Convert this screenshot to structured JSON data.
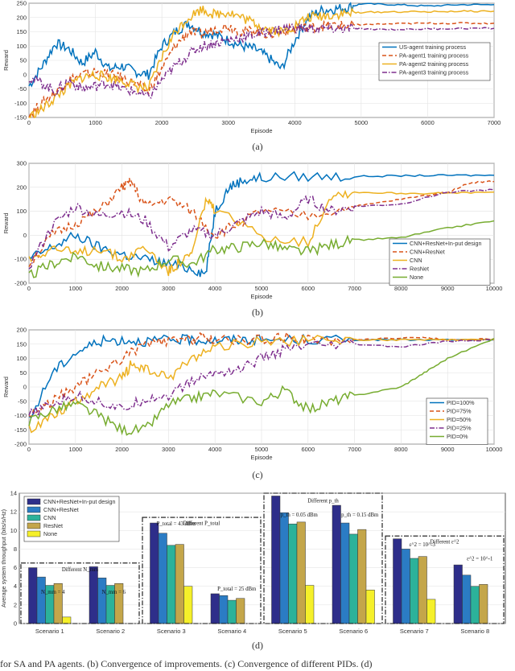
{
  "colors": {
    "blue": "#0072BD",
    "red": "#D95319",
    "yellow": "#EDB120",
    "purple": "#7E2F8E",
    "green": "#77AC30",
    "bar_navy": "#2E2E8A",
    "bar_blue": "#2B7CC4",
    "bar_teal": "#2CB29A",
    "bar_khaki": "#C4A64A",
    "bar_yellow": "#F5F02A"
  },
  "chart_data": [
    {
      "panel": "(a)",
      "type": "line",
      "xlabel": "Episode",
      "ylabel": "Reward",
      "xlim": [
        0,
        7000
      ],
      "ylim": [
        -150,
        250
      ],
      "xticks": [
        "0",
        "1000",
        "2000",
        "3000",
        "4000",
        "5000",
        "6000",
        "7000"
      ],
      "yticks": [
        "-150",
        "-100",
        "-50",
        "0",
        "50",
        "100",
        "150",
        "200",
        "250"
      ],
      "legend_position": "right",
      "series": [
        {
          "name": "US-agent training process",
          "style": "solid",
          "x": [
            0,
            200,
            400,
            600,
            800,
            1000,
            1200,
            1400,
            1600,
            1800,
            2000,
            2200,
            2400,
            2600,
            2800,
            3000,
            3200,
            3400,
            3600,
            3800,
            4000,
            4200,
            4400,
            4600,
            4800,
            5000,
            5500,
            6000,
            6500,
            7000
          ],
          "y": [
            -40,
            30,
            110,
            90,
            40,
            80,
            20,
            30,
            10,
            0,
            100,
            150,
            180,
            150,
            140,
            120,
            100,
            90,
            60,
            20,
            120,
            200,
            225,
            230,
            235,
            248,
            245,
            240,
            245,
            245
          ]
        },
        {
          "name": "PA-agent1 training process",
          "style": "dashed",
          "x": [
            0,
            200,
            400,
            600,
            800,
            1000,
            1200,
            1400,
            1600,
            1800,
            2000,
            2200,
            2400,
            2600,
            2800,
            3000,
            3200,
            3400,
            3600,
            3800,
            4000,
            4200,
            4400,
            4600,
            4800,
            5000,
            5500,
            6000,
            6500,
            7000
          ],
          "y": [
            -140,
            -100,
            -60,
            -20,
            0,
            10,
            0,
            -10,
            -30,
            -60,
            20,
            100,
            150,
            140,
            160,
            170,
            150,
            155,
            140,
            150,
            160,
            165,
            170,
            172,
            172,
            175,
            178,
            180,
            180,
            180
          ]
        },
        {
          "name": "PA-agent2 training process",
          "style": "solid",
          "x": [
            0,
            200,
            400,
            600,
            800,
            1000,
            1200,
            1400,
            1600,
            1800,
            2000,
            2200,
            2400,
            2600,
            2800,
            3000,
            3200,
            3400,
            3600,
            3800,
            4000,
            4200,
            4400,
            4600,
            4800,
            5000,
            5500,
            6000,
            6500,
            7000
          ],
          "y": [
            -150,
            -120,
            -80,
            -40,
            -10,
            0,
            -10,
            -20,
            -40,
            -50,
            60,
            150,
            200,
            230,
            210,
            220,
            200,
            180,
            160,
            150,
            170,
            200,
            205,
            210,
            215,
            218,
            220,
            220,
            222,
            222
          ]
        },
        {
          "name": "PA-agent3 training process",
          "style": "dashdot",
          "x": [
            0,
            200,
            400,
            600,
            800,
            1000,
            1200,
            1400,
            1600,
            1800,
            2000,
            2200,
            2400,
            2600,
            2800,
            3000,
            3200,
            3400,
            3600,
            3800,
            4000,
            4200,
            4400,
            4600,
            4800,
            5000,
            5500,
            6000,
            6500,
            7000
          ],
          "y": [
            -10,
            -30,
            -60,
            -20,
            -50,
            -40,
            -30,
            -50,
            -60,
            -80,
            -20,
            30,
            70,
            100,
            110,
            120,
            130,
            140,
            150,
            160,
            165,
            160,
            162,
            160,
            160,
            160,
            158,
            160,
            162,
            162
          ]
        }
      ]
    },
    {
      "panel": "(b)",
      "type": "line",
      "xlabel": "Episode",
      "ylabel": "Reward",
      "xlim": [
        0,
        10000
      ],
      "ylim": [
        -200,
        300
      ],
      "xticks": [
        "0",
        "1000",
        "2000",
        "3000",
        "4000",
        "5000",
        "6000",
        "7000",
        "8000",
        "9000",
        "10000"
      ],
      "yticks": [
        "-200",
        "-100",
        "0",
        "100",
        "200",
        "300"
      ],
      "legend_position": "right",
      "series": [
        {
          "name": "CNN+ResNet+In-put design",
          "style": "solid",
          "x": [
            0,
            500,
            1000,
            1500,
            2000,
            2500,
            3000,
            3500,
            3800,
            4000,
            4300,
            4600,
            5000,
            6000,
            7000,
            8000,
            9000,
            10000
          ],
          "y": [
            -100,
            -50,
            0,
            -50,
            -80,
            -100,
            -120,
            -140,
            -160,
            100,
            200,
            230,
            240,
            245,
            245,
            248,
            250,
            250
          ]
        },
        {
          "name": "CNN+ResNet",
          "style": "dashed",
          "x": [
            0,
            500,
            1000,
            1500,
            2000,
            2200,
            2500,
            3000,
            3500,
            4000,
            4500,
            5000,
            6000,
            7000,
            8000,
            9000,
            9500,
            10000
          ],
          "y": [
            -120,
            0,
            50,
            100,
            200,
            220,
            120,
            150,
            100,
            0,
            50,
            100,
            80,
            120,
            150,
            180,
            220,
            225
          ]
        },
        {
          "name": "CNN",
          "style": "solid",
          "x": [
            0,
            500,
            1000,
            1500,
            2000,
            2500,
            3000,
            3200,
            3500,
            3800,
            4000,
            5000,
            6000,
            6500,
            7000,
            8000,
            9000,
            10000
          ],
          "y": [
            -100,
            -50,
            -80,
            -50,
            -100,
            -50,
            -150,
            -120,
            -80,
            150,
            100,
            0,
            -30,
            170,
            180,
            175,
            175,
            180
          ]
        },
        {
          "name": "ResNet",
          "style": "dashdot",
          "x": [
            0,
            500,
            1000,
            1500,
            2000,
            2500,
            3000,
            3500,
            4000,
            4500,
            5000,
            5500,
            6000,
            6500,
            7000,
            8000,
            9000,
            10000
          ],
          "y": [
            -130,
            40,
            120,
            80,
            100,
            60,
            -50,
            20,
            0,
            50,
            100,
            70,
            150,
            100,
            120,
            130,
            180,
            190
          ]
        },
        {
          "name": "None",
          "style": "solid",
          "x": [
            0,
            500,
            1000,
            1500,
            2000,
            2500,
            3000,
            3500,
            4000,
            4500,
            5000,
            5500,
            6000,
            6500,
            7000,
            8000,
            9000,
            10000
          ],
          "y": [
            -170,
            -120,
            -80,
            -130,
            -140,
            -150,
            -100,
            -120,
            -60,
            -50,
            -30,
            -60,
            -70,
            -40,
            -20,
            -10,
            30,
            60
          ]
        }
      ]
    },
    {
      "panel": "(c)",
      "type": "line",
      "xlabel": "Episode",
      "ylabel": "Reward",
      "xlim": [
        0,
        10000
      ],
      "ylim": [
        -200,
        200
      ],
      "xticks": [
        "0",
        "1000",
        "2000",
        "3000",
        "4000",
        "5000",
        "6000",
        "7000",
        "8000",
        "9000",
        "10000"
      ],
      "yticks": [
        "-200",
        "-150",
        "-100",
        "-50",
        "0",
        "50",
        "100",
        "150",
        "200"
      ],
      "legend_position": "right",
      "series": [
        {
          "name": "PID=100%",
          "style": "solid",
          "x": [
            0,
            500,
            1000,
            1500,
            2000,
            2500,
            3000,
            3500,
            4000,
            4500,
            5000,
            6000,
            7000,
            8000,
            9000,
            10000
          ],
          "y": [
            -120,
            50,
            120,
            160,
            165,
            160,
            165,
            165,
            165,
            165,
            165,
            165,
            165,
            165,
            165,
            165
          ]
        },
        {
          "name": "PID=75%",
          "style": "dashed",
          "x": [
            0,
            500,
            1000,
            1500,
            2000,
            2500,
            3000,
            3500,
            3700,
            4000,
            5000,
            5600,
            6000,
            7000,
            8400,
            9000,
            10000
          ],
          "y": [
            -100,
            -50,
            0,
            50,
            100,
            150,
            160,
            165,
            175,
            165,
            165,
            175,
            165,
            165,
            175,
            165,
            168
          ]
        },
        {
          "name": "PID=50%",
          "style": "solid",
          "x": [
            0,
            500,
            1000,
            1500,
            2000,
            2200,
            2500,
            3000,
            3500,
            4000,
            5000,
            6000,
            7000,
            8000,
            9000,
            10000
          ],
          "y": [
            -150,
            -100,
            -50,
            0,
            30,
            80,
            60,
            30,
            100,
            140,
            160,
            162,
            165,
            165,
            165,
            165
          ]
        },
        {
          "name": "PID=25%",
          "style": "dashdot",
          "x": [
            0,
            500,
            1000,
            1500,
            2000,
            2500,
            3000,
            3500,
            4000,
            4500,
            5000,
            5500,
            6000,
            7000,
            8000,
            9000,
            10000
          ],
          "y": [
            -100,
            -60,
            -30,
            -50,
            -80,
            -40,
            -30,
            20,
            50,
            60,
            100,
            130,
            140,
            150,
            140,
            160,
            165
          ]
        },
        {
          "name": "PID=0%",
          "style": "solid",
          "x": [
            0,
            500,
            1000,
            1500,
            2000,
            2500,
            3000,
            3500,
            4000,
            5000,
            5500,
            6000,
            6500,
            7000,
            8000,
            8500,
            9000,
            10000
          ],
          "y": [
            -120,
            -80,
            -60,
            -100,
            -150,
            -150,
            -60,
            -40,
            -20,
            -50,
            -10,
            -80,
            -50,
            -30,
            0,
            50,
            100,
            170
          ]
        }
      ]
    },
    {
      "panel": "(d)",
      "type": "bar",
      "ylabel": "Average system throughput (bits/s/Hz)",
      "ylim": [
        0,
        14
      ],
      "yticks": [
        "0",
        "2",
        "4",
        "6",
        "8",
        "10",
        "12",
        "14"
      ],
      "categories": [
        "Scenario 1",
        "Scenario 2",
        "Scenario 3",
        "Scenario 4",
        "Scenario 5",
        "Scenario 6",
        "Scenario 7",
        "Scenario 8"
      ],
      "legend_position": "top-left",
      "series": [
        {
          "name": "CNN+ResNet+In-put design",
          "values": [
            6.0,
            6.1,
            10.8,
            3.2,
            13.7,
            12.7,
            9.1,
            6.3
          ]
        },
        {
          "name": "CNN+ResNet",
          "values": [
            5.0,
            4.9,
            9.7,
            3.0,
            11.9,
            10.8,
            8.0,
            5.2
          ]
        },
        {
          "name": "CNN",
          "values": [
            4.1,
            4.1,
            8.4,
            2.5,
            10.7,
            9.6,
            7.0,
            4.0
          ]
        },
        {
          "name": "ResNet",
          "values": [
            4.3,
            4.3,
            8.5,
            2.7,
            10.9,
            10.1,
            7.2,
            4.2
          ]
        },
        {
          "name": "None",
          "values": [
            0.7,
            0.0,
            4.0,
            0.0,
            4.1,
            3.6,
            2.6,
            0.0
          ]
        }
      ],
      "annotations": [
        {
          "text": "Different N_mm",
          "group": "Scenario 1-2"
        },
        {
          "text": "N_mm = 4",
          "group": "Scenario 1"
        },
        {
          "text": "N_mm = 6",
          "group": "Scenario 2"
        },
        {
          "text": "Different P_total",
          "group": "Scenario 3-4"
        },
        {
          "text": "P_total = 43 dBm",
          "group": "Scenario 3"
        },
        {
          "text": "P_total = 25 dBm",
          "group": "Scenario 4"
        },
        {
          "text": "Different p_th",
          "group": "Scenario 5-6"
        },
        {
          "text": "p_th = 0.05 dBm",
          "group": "Scenario 5"
        },
        {
          "text": "p_th = 0.15 dBm",
          "group": "Scenario 6"
        },
        {
          "text": "Different ε^2",
          "group": "Scenario 7-8"
        },
        {
          "text": "ε^2 = 10^-3",
          "group": "Scenario 7"
        },
        {
          "text": "ε^2 = 10^-1",
          "group": "Scenario 8"
        }
      ]
    }
  ],
  "caption": "for SA and PA agents. (b) Convergence of improvements. (c) Convergence of different PIDs. (d)"
}
